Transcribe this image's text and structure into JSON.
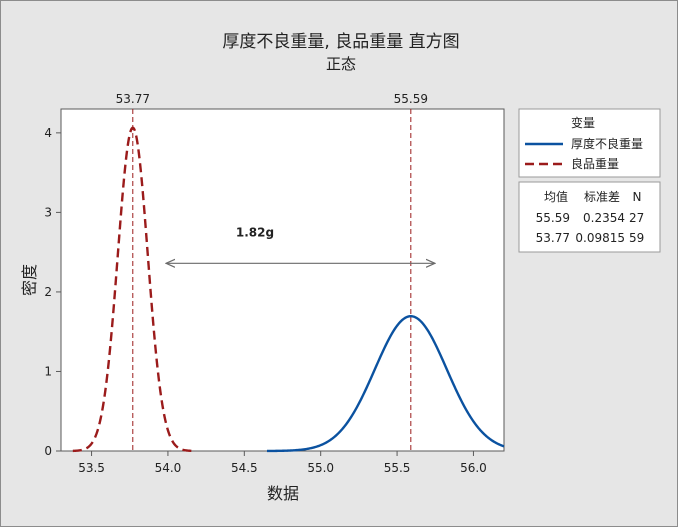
{
  "chart_data": {
    "type": "line",
    "title": "厚度不良重量, 良品重量 直方图",
    "subtitle": "正态",
    "xlabel": "数据",
    "ylabel": "密度",
    "xlim": [
      53.3,
      56.2
    ],
    "ylim": [
      0,
      4.3
    ],
    "xticks": [
      53.5,
      54.0,
      54.5,
      55.0,
      55.5,
      56.0
    ],
    "xtick_labels": [
      "53.5",
      "54.0",
      "54.5",
      "55.0",
      "55.5",
      "56.0"
    ],
    "yticks": [
      0,
      1,
      2,
      3,
      4
    ],
    "ytick_labels": [
      "0",
      "1",
      "2",
      "3",
      "4"
    ],
    "grid": false,
    "legend": {
      "title": "变量",
      "position": "right",
      "entries": [
        {
          "name": "厚度不良重量",
          "color": "#0b52a0",
          "style": "solid"
        },
        {
          "name": "良品重量",
          "color": "#9b1b1b",
          "style": "dashed"
        }
      ]
    },
    "stats_table": {
      "headers": [
        "均值",
        "标准差",
        "N"
      ],
      "rows": [
        [
          "55.59",
          "0.2354",
          "27"
        ],
        [
          "53.77",
          "0.09815",
          "59"
        ]
      ]
    },
    "series": [
      {
        "name": "厚度不良重量",
        "distribution": "normal",
        "mean": 55.59,
        "std": 0.2354,
        "n": 27,
        "color": "#0b52a0",
        "style": "solid"
      },
      {
        "name": "良品重量",
        "distribution": "normal",
        "mean": 53.77,
        "std": 0.09815,
        "n": 59,
        "color": "#9b1b1b",
        "style": "dashed"
      }
    ],
    "reference_lines": [
      {
        "x": 53.77,
        "label": "53.77",
        "color": "#9b1b1b"
      },
      {
        "x": 55.59,
        "label": "55.59",
        "color": "#9b1b1b"
      }
    ],
    "annotation": {
      "text": "1.82g",
      "color": "#cc1f1f",
      "from_x": 53.77,
      "to_x": 55.59
    }
  }
}
